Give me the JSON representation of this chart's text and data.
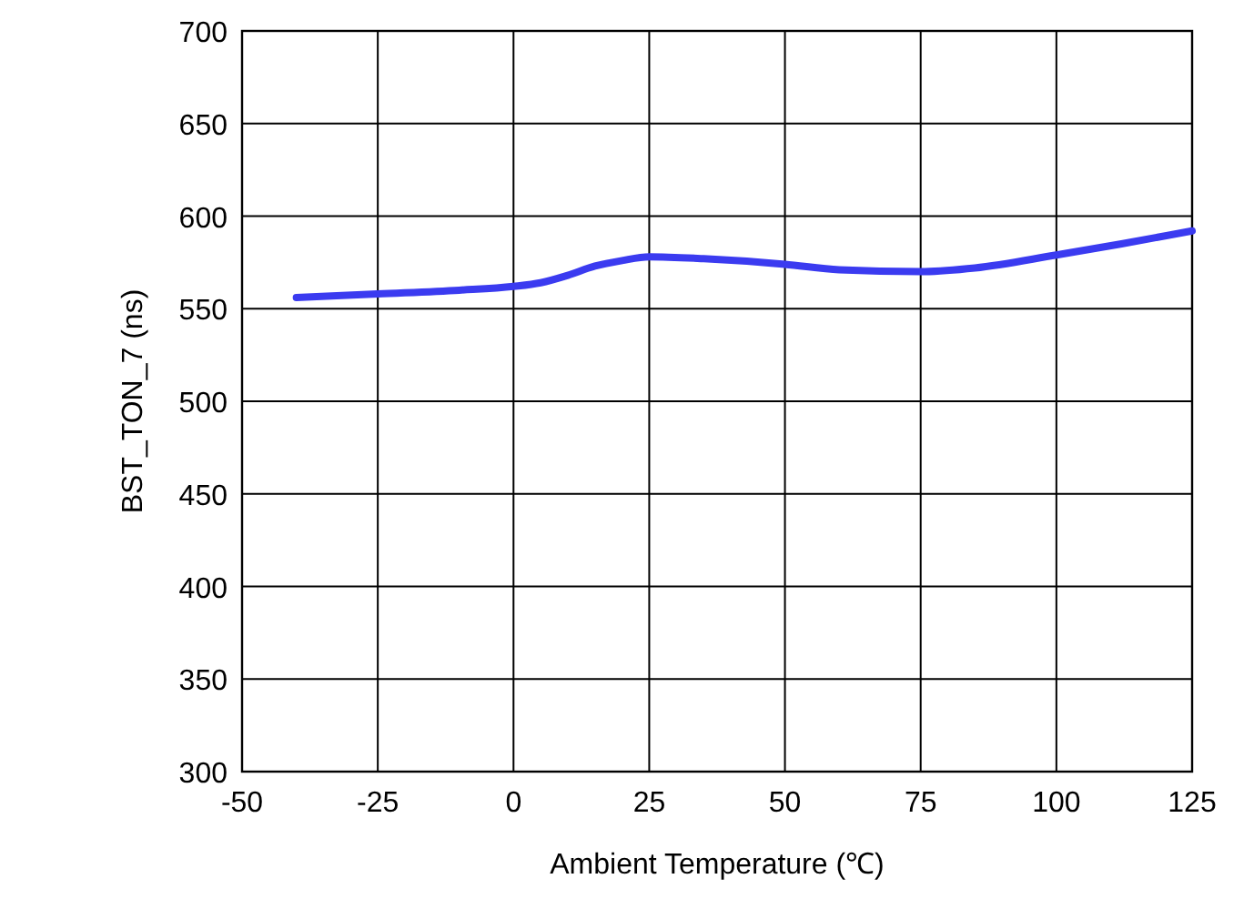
{
  "chart_data": {
    "type": "line",
    "xlabel": "Ambient Temperature (℃)",
    "ylabel": "BST_TON_7 (ns)",
    "xlim": [
      -50,
      125
    ],
    "ylim": [
      300,
      700
    ],
    "xticks": [
      -50,
      -25,
      0,
      25,
      50,
      75,
      100,
      125
    ],
    "yticks": [
      300,
      350,
      400,
      450,
      500,
      550,
      600,
      650,
      700
    ],
    "grid": true,
    "series": [
      {
        "color": "#3b3bf0",
        "x": [
          -40,
          -25,
          -10,
          0,
          5,
          10,
          15,
          20,
          25,
          35,
          50,
          60,
          75,
          85,
          100,
          112,
          125
        ],
        "values": [
          556,
          558,
          560,
          562,
          564,
          568,
          573,
          576,
          578,
          577,
          574,
          571,
          570,
          572,
          579,
          585,
          592
        ]
      }
    ]
  }
}
